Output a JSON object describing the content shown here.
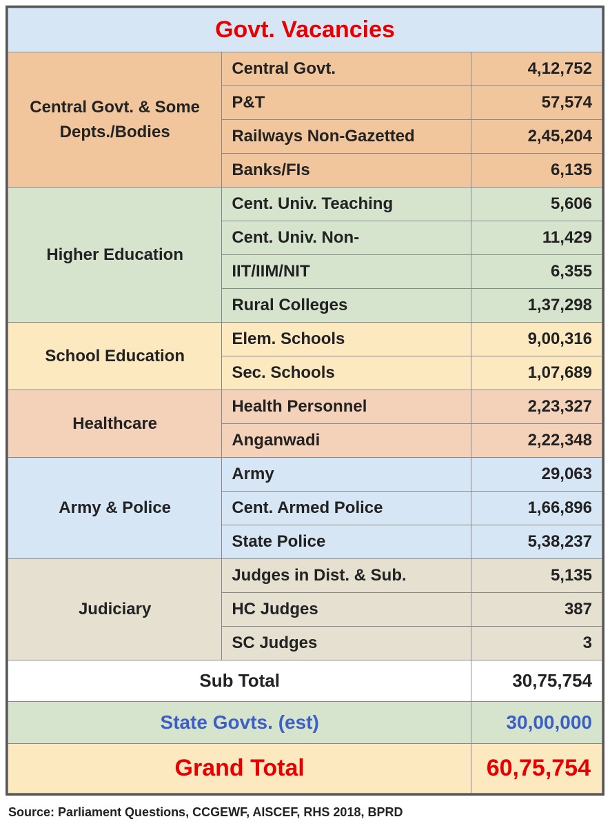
{
  "title": "Govt. Vacancies",
  "colors": {
    "title_bg": "#d7e6f5",
    "title_fg": "#e80000",
    "cat_central_bg": "#f1c69d",
    "cat_higher_bg": "#d6e3cd",
    "cat_school_bg": "#fce9c0",
    "cat_health_bg": "#f4d2ba",
    "cat_army_bg": "#d7e6f5",
    "cat_jud_bg": "#e6e0d1",
    "subtotal_bg": "#ffffff",
    "stategov_bg": "#d6e3cd",
    "stategov_fg": "#3b5fc4",
    "grand_bg": "#fce9c0",
    "grand_fg": "#e80000",
    "border": "#888888",
    "outer_border": "#555555",
    "text": "#222222"
  },
  "fonts": {
    "family": "Arial",
    "cell_size_pt": 18,
    "title_size_pt": 26,
    "grand_size_pt": 26,
    "source_size_pt": 13
  },
  "sections": [
    {
      "key": "central",
      "label": "Central Govt. & Some Depts./Bodies",
      "bg": "#f1c69d",
      "rows": [
        {
          "label": "Central Govt.",
          "value": "4,12,752"
        },
        {
          "label": "P&T",
          "value": "57,574"
        },
        {
          "label": "Railways Non-Gazetted",
          "value": "2,45,204"
        },
        {
          "label": "Banks/FIs",
          "value": "6,135"
        }
      ]
    },
    {
      "key": "higher",
      "label": "Higher Education",
      "bg": "#d6e3cd",
      "rows": [
        {
          "label": "Cent. Univ. Teaching",
          "value": "5,606"
        },
        {
          "label": "Cent. Univ. Non-",
          "value": "11,429"
        },
        {
          "label": "IIT/IIM/NIT",
          "value": "6,355"
        },
        {
          "label": "Rural Colleges",
          "value": "1,37,298"
        }
      ]
    },
    {
      "key": "school",
      "label": "School Education",
      "bg": "#fce9c0",
      "rows": [
        {
          "label": "Elem. Schools",
          "value": "9,00,316"
        },
        {
          "label": "Sec. Schools",
          "value": "1,07,689"
        }
      ]
    },
    {
      "key": "health",
      "label": "Healthcare",
      "bg": "#f4d2ba",
      "rows": [
        {
          "label": "Health Personnel",
          "value": "2,23,327"
        },
        {
          "label": "Anganwadi",
          "value": "2,22,348"
        }
      ]
    },
    {
      "key": "army",
      "label": "Army & Police",
      "bg": "#d7e6f5",
      "rows": [
        {
          "label": "Army",
          "value": "29,063"
        },
        {
          "label": "Cent. Armed Police",
          "value": "1,66,896"
        },
        {
          "label": "State Police",
          "value": "5,38,237"
        }
      ]
    },
    {
      "key": "jud",
      "label": "Judiciary",
      "bg": "#e6e0d1",
      "rows": [
        {
          "label": "Judges in Dist. & Sub.",
          "value": "5,135"
        },
        {
          "label": "HC Judges",
          "value": "387"
        },
        {
          "label": "SC Judges",
          "value": "3"
        }
      ]
    }
  ],
  "subtotal": {
    "label": "Sub Total",
    "value": "30,75,754"
  },
  "stategov": {
    "label": "State Govts. (est)",
    "value": "30,00,000"
  },
  "grand": {
    "label": "Grand Total",
    "value": "60,75,754"
  },
  "source": "Source: Parliament Questions, CCGEWF, AISCEF, RHS 2018, BPRD"
}
